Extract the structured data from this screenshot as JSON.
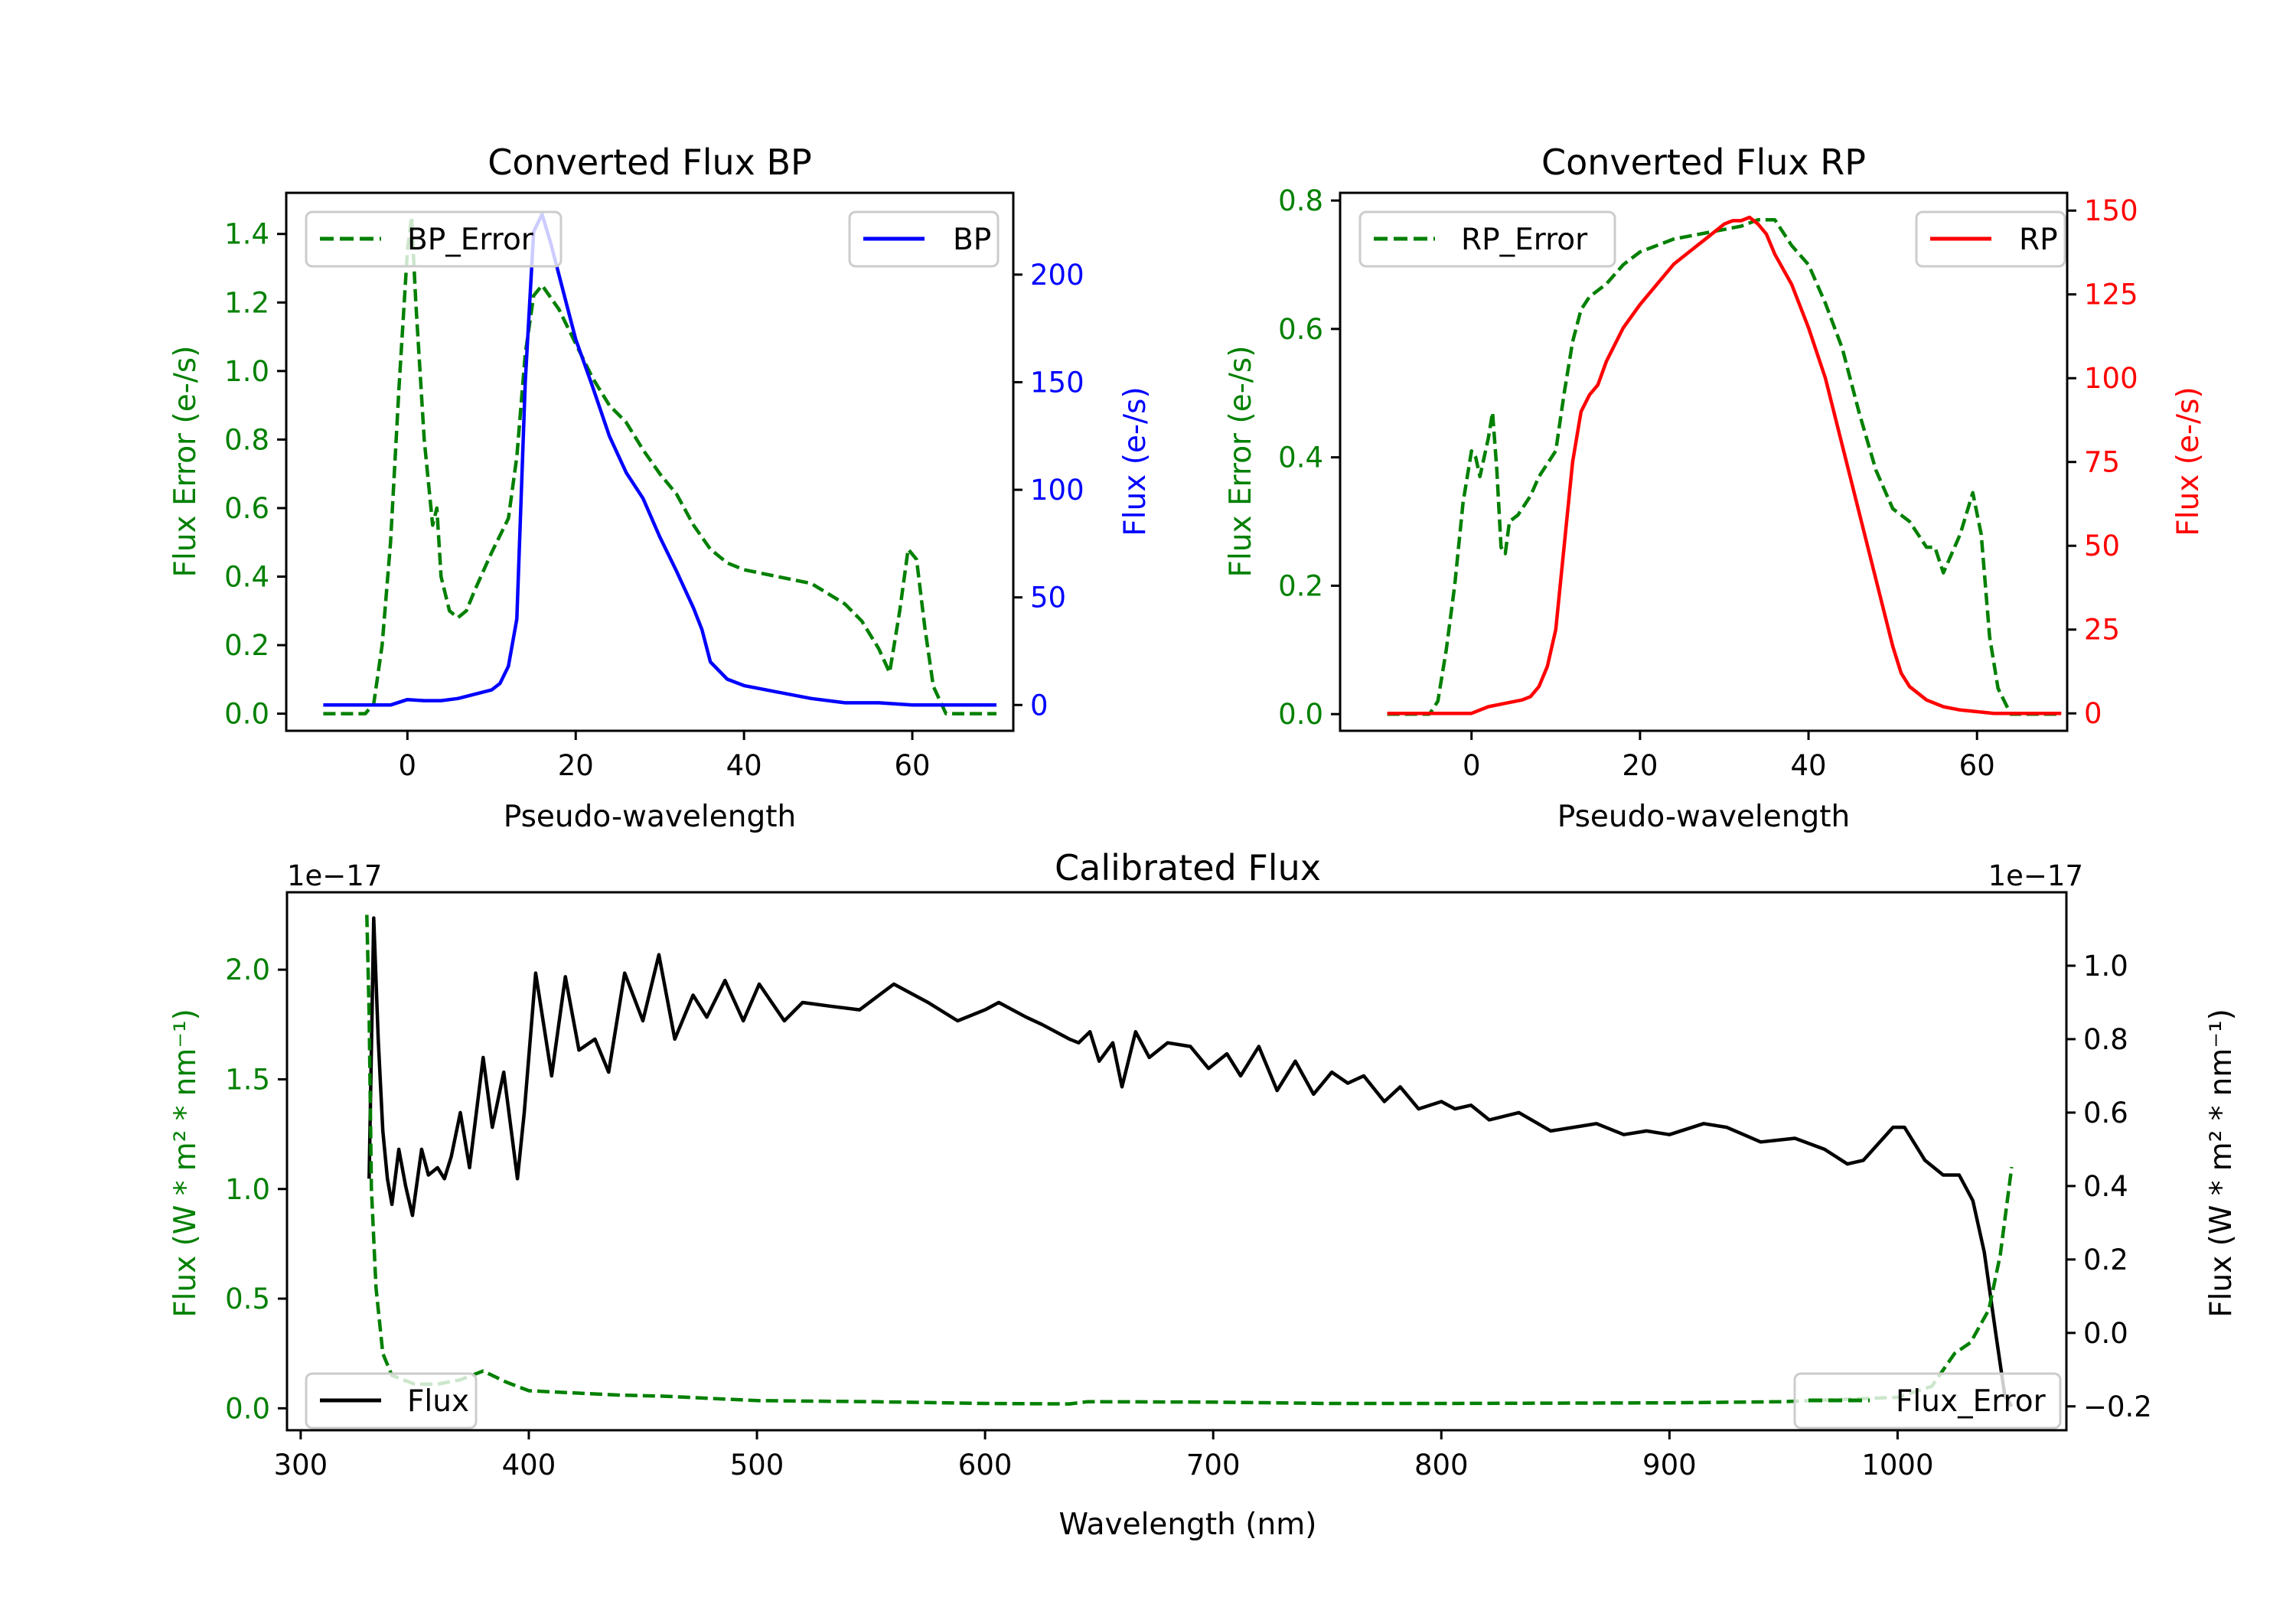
{
  "chart_data": [
    {
      "type": "line",
      "title": "Converted Flux BP",
      "xlabel": "Pseudo-wavelength",
      "xlim": [
        -14.4,
        72
      ],
      "xticks": [
        0,
        20,
        40,
        60
      ],
      "left_axis": {
        "label": "Flux Error (e-/s)",
        "color": "#008000",
        "ylim": [
          -0.05,
          1.52
        ],
        "ticks": [
          0.0,
          0.2,
          0.4,
          0.6,
          0.8,
          1.0,
          1.2,
          1.4
        ],
        "tick_labels": [
          "0.0",
          "0.2",
          "0.4",
          "0.6",
          "0.8",
          "1.0",
          "1.2",
          "1.4"
        ]
      },
      "right_axis": {
        "label": "Flux (e-/s)",
        "color": "#0000ff",
        "ylim": [
          -12,
          238
        ],
        "ticks": [
          0,
          50,
          100,
          150,
          200
        ],
        "tick_labels": [
          "0",
          "50",
          "100",
          "150",
          "200"
        ]
      },
      "series": [
        {
          "name": "BP_Error",
          "axis": "left",
          "color": "#008000",
          "style": "dashed",
          "legend": "top-left",
          "x": [
            -10,
            -5,
            -4,
            -3,
            -2,
            -1,
            0,
            0.5,
            1,
            2,
            3,
            3.5,
            4,
            5,
            6,
            7,
            8,
            10,
            12,
            13,
            14,
            15,
            16,
            18,
            20,
            22,
            24,
            26,
            28,
            30,
            32,
            34,
            36,
            38,
            40,
            44,
            48,
            52,
            54,
            56,
            57.3,
            58.5,
            59.5,
            60.5,
            61.5,
            62.5,
            64,
            70
          ],
          "y": [
            0,
            0,
            0.03,
            0.2,
            0.5,
            0.95,
            1.35,
            1.45,
            1.2,
            0.8,
            0.55,
            0.6,
            0.4,
            0.3,
            0.28,
            0.3,
            0.36,
            0.47,
            0.57,
            0.75,
            1.05,
            1.22,
            1.25,
            1.18,
            1.08,
            0.98,
            0.9,
            0.85,
            0.77,
            0.7,
            0.64,
            0.55,
            0.48,
            0.44,
            0.42,
            0.4,
            0.38,
            0.32,
            0.27,
            0.19,
            0.12,
            0.3,
            0.48,
            0.45,
            0.25,
            0.08,
            0,
            0
          ]
        },
        {
          "name": "BP",
          "axis": "right",
          "color": "#0000ff",
          "style": "solid",
          "legend": "top-right",
          "x": [
            -10,
            -2,
            0,
            2,
            4,
            6,
            8,
            10,
            11,
            12,
            13,
            14,
            15,
            16,
            17,
            18,
            19,
            20,
            22,
            24,
            26,
            28,
            30,
            32,
            34,
            35,
            36,
            38,
            40,
            44,
            48,
            52,
            56,
            60,
            70
          ],
          "y": [
            0,
            0,
            2.5,
            2,
            2,
            3,
            5,
            7,
            10,
            18,
            40,
            150,
            220,
            228,
            215,
            200,
            185,
            170,
            148,
            125,
            108,
            96,
            78,
            62,
            45,
            35,
            20,
            12,
            9,
            6,
            3,
            1,
            1,
            0,
            0
          ]
        }
      ]
    },
    {
      "type": "line",
      "title": "Converted Flux RP",
      "xlabel": "Pseudo-wavelength",
      "xlim": [
        -15.6,
        70.7
      ],
      "xticks": [
        0,
        20,
        40,
        60
      ],
      "left_axis": {
        "label": "Flux Error (e-/s)",
        "color": "#008000",
        "ylim": [
          -0.026,
          0.812
        ],
        "ticks": [
          0.0,
          0.2,
          0.4,
          0.6,
          0.8
        ],
        "tick_labels": [
          "0.0",
          "0.2",
          "0.4",
          "0.6",
          "0.8"
        ]
      },
      "right_axis": {
        "label": "Flux (e-/s)",
        "color": "#ff0000",
        "ylim": [
          -5.2,
          155.3
        ],
        "ticks": [
          0,
          25,
          50,
          75,
          100,
          125,
          150
        ],
        "tick_labels": [
          "0",
          "25",
          "50",
          "75",
          "100",
          "125",
          "150"
        ]
      },
      "series": [
        {
          "name": "RP_Error",
          "axis": "left",
          "color": "#008000",
          "style": "dashed",
          "legend": "top-left",
          "x": [
            -10,
            -5,
            -4,
            -3,
            -2,
            -1,
            0,
            0.5,
            1,
            2,
            2.5,
            3,
            3.5,
            4,
            4.5,
            5.5,
            7,
            8,
            10,
            11,
            12,
            13,
            14,
            16,
            18,
            20,
            22,
            24,
            26,
            28,
            30,
            32,
            34,
            36,
            38,
            40,
            42,
            44,
            46,
            48,
            50,
            52,
            54,
            55,
            56,
            58,
            59.5,
            60.5,
            61.5,
            62.5,
            64,
            70
          ],
          "y": [
            0,
            0,
            0.02,
            0.1,
            0.2,
            0.33,
            0.41,
            0.4,
            0.37,
            0.43,
            0.47,
            0.38,
            0.26,
            0.25,
            0.3,
            0.31,
            0.34,
            0.37,
            0.41,
            0.5,
            0.58,
            0.63,
            0.65,
            0.67,
            0.7,
            0.72,
            0.73,
            0.74,
            0.745,
            0.75,
            0.755,
            0.76,
            0.77,
            0.77,
            0.73,
            0.7,
            0.64,
            0.57,
            0.47,
            0.38,
            0.32,
            0.3,
            0.26,
            0.26,
            0.22,
            0.28,
            0.345,
            0.28,
            0.12,
            0.04,
            0,
            0
          ]
        },
        {
          "name": "RP",
          "axis": "right",
          "color": "#ff0000",
          "style": "solid",
          "legend": "top-right",
          "x": [
            -10,
            -1,
            0,
            2,
            4,
            6,
            7,
            8,
            9,
            10,
            11,
            12,
            13,
            14,
            15,
            16,
            17,
            18,
            20,
            22,
            24,
            26,
            28,
            30,
            31,
            32,
            33,
            34,
            35,
            36,
            38,
            40,
            42,
            44,
            46,
            48,
            50,
            51,
            52,
            54,
            56,
            58,
            62,
            70
          ],
          "y": [
            0,
            0,
            0,
            2,
            3,
            4,
            5,
            8,
            14,
            25,
            50,
            75,
            90,
            95,
            98,
            105,
            110,
            115,
            122,
            128,
            134,
            138,
            142,
            146,
            147,
            147,
            148,
            146,
            143,
            137,
            128,
            115,
            100,
            80,
            60,
            40,
            20,
            12,
            8,
            4,
            2,
            1,
            0,
            0
          ]
        }
      ]
    },
    {
      "type": "line",
      "title": "Calibrated Flux",
      "xlabel": "Wavelength (nm)",
      "xlim": [
        294,
        1074
      ],
      "xticks": [
        300,
        400,
        500,
        600,
        700,
        800,
        900,
        1000
      ],
      "left_axis": {
        "label": "Flux (W * m² * nm⁻¹)",
        "color": "#008000",
        "offset_text": "1e−17",
        "ylim": [
          -0.1,
          2.353
        ],
        "ticks": [
          0.0,
          0.5,
          1.0,
          1.5,
          2.0
        ],
        "tick_labels": [
          "0.0",
          "0.5",
          "1.0",
          "1.5",
          "2.0"
        ]
      },
      "right_axis": {
        "label": "Flux (W * m² * nm⁻¹)",
        "color": "#000000",
        "offset_text": "1e−17",
        "ylim": [
          -0.265,
          1.2
        ],
        "ticks": [
          -0.2,
          0.0,
          0.2,
          0.4,
          0.6,
          0.8,
          1.0
        ],
        "tick_labels": [
          "−0.2",
          "0.0",
          "0.2",
          "0.4",
          "0.6",
          "0.8",
          "1.0"
        ]
      },
      "series": [
        {
          "name": "Flux",
          "axis": "right",
          "color": "#000000",
          "style": "solid",
          "legend": "bottom-left",
          "x": [
            330,
            332,
            334,
            336,
            338,
            340,
            343,
            346,
            349,
            353,
            356,
            360,
            363,
            366,
            370,
            374,
            380,
            384,
            389,
            395,
            398,
            403,
            410,
            416,
            422,
            429,
            435,
            442,
            450,
            457,
            464,
            472,
            478,
            486,
            494,
            501,
            512,
            520,
            532,
            545,
            560,
            575,
            588,
            600,
            606,
            618,
            625,
            637,
            641,
            646,
            650,
            656,
            660,
            666,
            672,
            680,
            690,
            698,
            706,
            712,
            720,
            728,
            736,
            744,
            752,
            759,
            766,
            775,
            782,
            790,
            800,
            806,
            813,
            821,
            834,
            848,
            858,
            868,
            880,
            890,
            900,
            915,
            925,
            940,
            955,
            968,
            978,
            985,
            998,
            1003,
            1012,
            1020,
            1027,
            1033,
            1038,
            1043,
            1047,
            1050
          ],
          "y": [
            0.42,
            1.13,
            0.8,
            0.55,
            0.42,
            0.35,
            0.5,
            0.4,
            0.32,
            0.5,
            0.43,
            0.45,
            0.42,
            0.48,
            0.6,
            0.45,
            0.75,
            0.56,
            0.71,
            0.42,
            0.6,
            0.98,
            0.7,
            0.97,
            0.77,
            0.8,
            0.71,
            0.98,
            0.85,
            1.03,
            0.8,
            0.92,
            0.86,
            0.96,
            0.85,
            0.95,
            0.85,
            0.9,
            0.89,
            0.88,
            0.95,
            0.9,
            0.85,
            0.88,
            0.9,
            0.86,
            0.84,
            0.8,
            0.79,
            0.82,
            0.74,
            0.79,
            0.67,
            0.82,
            0.75,
            0.79,
            0.78,
            0.72,
            0.76,
            0.7,
            0.78,
            0.66,
            0.74,
            0.65,
            0.71,
            0.68,
            0.7,
            0.63,
            0.67,
            0.61,
            0.63,
            0.61,
            0.62,
            0.58,
            0.6,
            0.55,
            0.56,
            0.57,
            0.54,
            0.55,
            0.54,
            0.57,
            0.56,
            0.52,
            0.53,
            0.5,
            0.46,
            0.47,
            0.56,
            0.56,
            0.47,
            0.43,
            0.43,
            0.36,
            0.22,
            0.0,
            -0.17,
            -0.2
          ]
        },
        {
          "name": "Flux_Error",
          "axis": "left",
          "color": "#008000",
          "style": "dashed",
          "legend": "bottom-right",
          "x": [
            329,
            330,
            331,
            333,
            336,
            340,
            350,
            360,
            370,
            380,
            390,
            400,
            420,
            440,
            460,
            500,
            550,
            600,
            637,
            645,
            700,
            750,
            800,
            900,
            950,
            1000,
            1015,
            1025,
            1032,
            1040,
            1045,
            1050
          ],
          "y": [
            2.25,
            1.8,
            1.0,
            0.55,
            0.25,
            0.15,
            0.11,
            0.11,
            0.13,
            0.17,
            0.12,
            0.08,
            0.07,
            0.06,
            0.055,
            0.035,
            0.03,
            0.022,
            0.02,
            0.03,
            0.028,
            0.022,
            0.022,
            0.025,
            0.03,
            0.05,
            0.1,
            0.25,
            0.3,
            0.45,
            0.7,
            1.1
          ]
        }
      ]
    }
  ]
}
